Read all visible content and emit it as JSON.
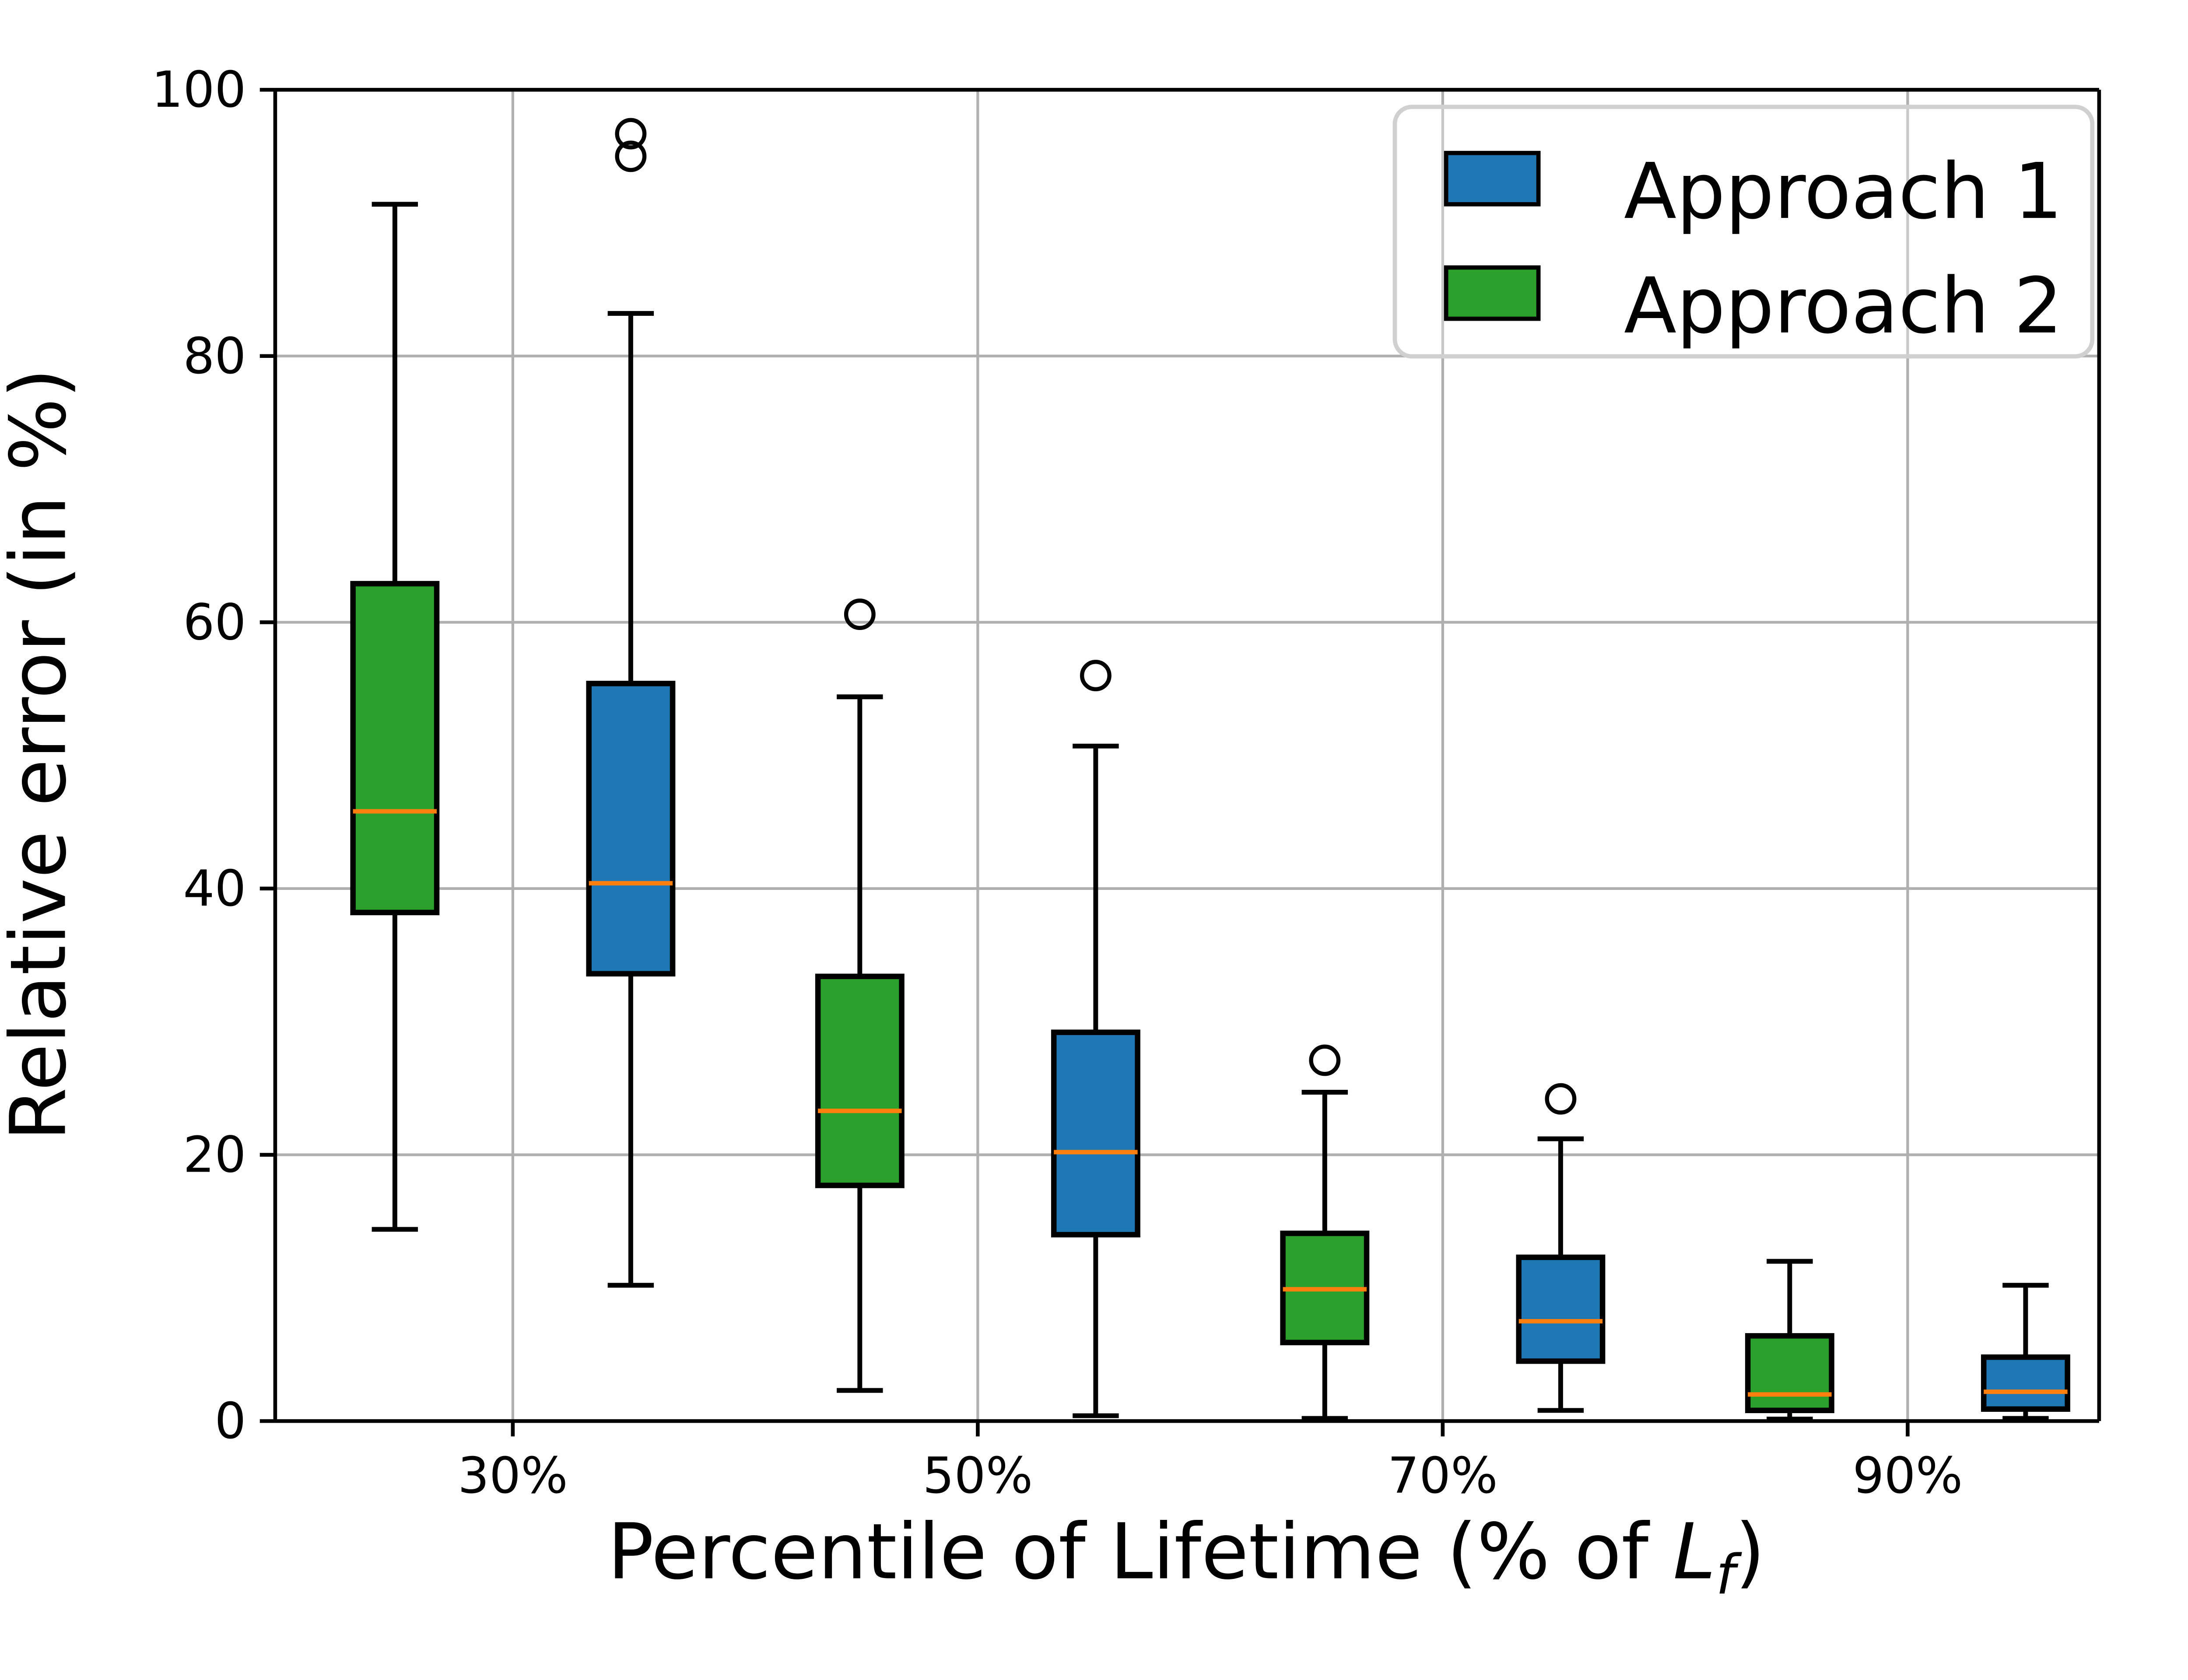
{
  "figure": {
    "background": "#ffffff",
    "grid_color": "#b0b0b0",
    "spine_color": "#000000",
    "legend_border_color": "#d0d0d0"
  },
  "chart_data": {
    "type": "boxplot",
    "title": "",
    "ylabel": "Relative error (in %)",
    "xlabel_plain": "Percentile of Lifetime (% of Lf)",
    "xlabel_parts": {
      "prefix": "Percentile of Lifetime (% of ",
      "var": "L",
      "sub": "f",
      "suffix": ")"
    },
    "categories": [
      "30%",
      "50%",
      "70%",
      "90%"
    ],
    "ylim": [
      0,
      100
    ],
    "yticks": [
      0,
      20,
      40,
      60,
      80,
      100
    ],
    "grid": true,
    "legend_position": "upper right",
    "median_color": "#ff7f0e",
    "legend": [
      "Approach 1",
      "Approach 2"
    ],
    "series": [
      {
        "name": "Approach 1",
        "color": "#1f77b4",
        "side": "right",
        "boxes": [
          {
            "category": "30%",
            "whisker_low": 10.2,
            "q1": 33.6,
            "median": 40.4,
            "q3": 55.4,
            "whisker_high": 83.2,
            "outliers": [
              95.0,
              96.7
            ]
          },
          {
            "category": "50%",
            "whisker_low": 0.4,
            "q1": 14.0,
            "median": 20.2,
            "q3": 29.2,
            "whisker_high": 50.7,
            "outliers": [
              56.0
            ]
          },
          {
            "category": "70%",
            "whisker_low": 0.8,
            "q1": 4.5,
            "median": 7.5,
            "q3": 12.3,
            "whisker_high": 21.2,
            "outliers": [
              24.2
            ]
          },
          {
            "category": "90%",
            "whisker_low": 0.2,
            "q1": 0.9,
            "median": 2.2,
            "q3": 4.8,
            "whisker_high": 10.2,
            "outliers": []
          }
        ]
      },
      {
        "name": "Approach 2",
        "color": "#2ca02c",
        "side": "left",
        "boxes": [
          {
            "category": "30%",
            "whisker_low": 14.4,
            "q1": 38.2,
            "median": 45.8,
            "q3": 62.9,
            "whisker_high": 91.4,
            "outliers": []
          },
          {
            "category": "50%",
            "whisker_low": 2.3,
            "q1": 17.7,
            "median": 23.3,
            "q3": 33.4,
            "whisker_high": 54.4,
            "outliers": [
              60.6
            ]
          },
          {
            "category": "70%",
            "whisker_low": 0.2,
            "q1": 5.9,
            "median": 9.9,
            "q3": 14.1,
            "whisker_high": 24.7,
            "outliers": [
              27.1
            ]
          },
          {
            "category": "90%",
            "whisker_low": 0.15,
            "q1": 0.8,
            "median": 2.0,
            "q3": 6.4,
            "whisker_high": 12.0,
            "outliers": []
          }
        ]
      }
    ]
  }
}
